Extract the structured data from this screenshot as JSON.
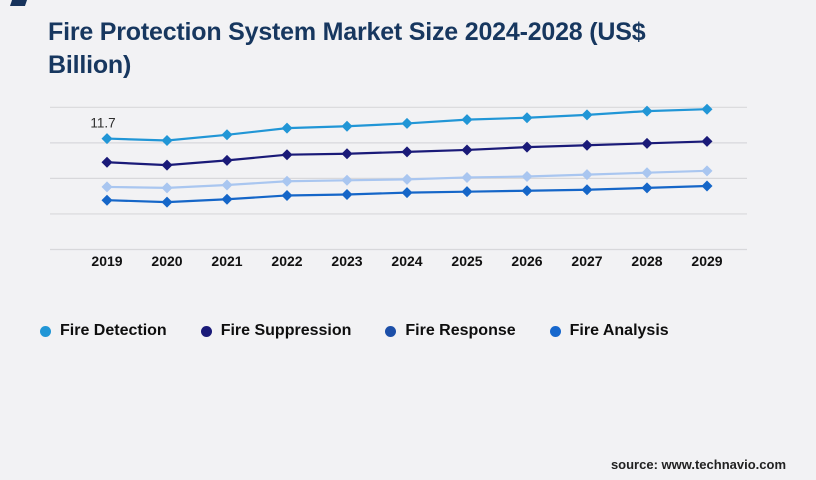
{
  "page": {
    "title": "Fire Protection System Market Size 2024-2028 (US$ Billion)",
    "source": "source: www.technavio.com"
  },
  "colors": {
    "background": "#f2f2f4",
    "title_text": "#17375f",
    "gridline": "#d8d8db",
    "axis_label_text": "#111111",
    "annotation_text": "#2d2d2d",
    "corner_accent": "#17335c"
  },
  "legend": [
    {
      "label": "Fire Detection",
      "dot_color": "#2196d6"
    },
    {
      "label": "Fire Suppression",
      "dot_color": "#1a1a78"
    },
    {
      "label": "Fire Response",
      "dot_color": "#1c4fa8"
    },
    {
      "label": "Fire Analysis",
      "dot_color": "#1667cd"
    }
  ],
  "chart_data": {
    "type": "line",
    "title": "Fire Protection System Market Size 2024-2028 (US$ Billion)",
    "x": [
      2019,
      2020,
      2021,
      2022,
      2023,
      2024,
      2025,
      2026,
      2027,
      2028,
      2029
    ],
    "series": [
      {
        "name": "Fire Detection",
        "color": "#2196d6",
        "marker": "diamond",
        "values": [
          11.7,
          11.5,
          12.1,
          12.8,
          13.0,
          13.3,
          13.7,
          13.9,
          14.2,
          14.6,
          14.8
        ]
      },
      {
        "name": "Fire Suppression",
        "color": "#1a1a78",
        "marker": "diamond",
        "values": [
          9.2,
          8.9,
          9.4,
          10.0,
          10.1,
          10.3,
          10.5,
          10.8,
          11.0,
          11.2,
          11.4
        ]
      },
      {
        "name": "Fire Response",
        "color": "#a9c6f0",
        "marker": "diamond",
        "values": [
          6.6,
          6.5,
          6.8,
          7.2,
          7.3,
          7.4,
          7.6,
          7.7,
          7.9,
          8.1,
          8.3
        ]
      },
      {
        "name": "Fire Analysis",
        "color": "#1566c8",
        "marker": "diamond",
        "values": [
          5.2,
          5.0,
          5.3,
          5.7,
          5.8,
          6.0,
          6.1,
          6.2,
          6.3,
          6.5,
          6.7
        ]
      }
    ],
    "annotations": [
      {
        "series": "Fire Detection",
        "x": 2019,
        "text": "11.7"
      }
    ],
    "ylim": [
      0,
      15
    ],
    "grid": true,
    "grid_lines": 5,
    "legend_position": "bottom",
    "y_axis_labels_shown": false
  }
}
